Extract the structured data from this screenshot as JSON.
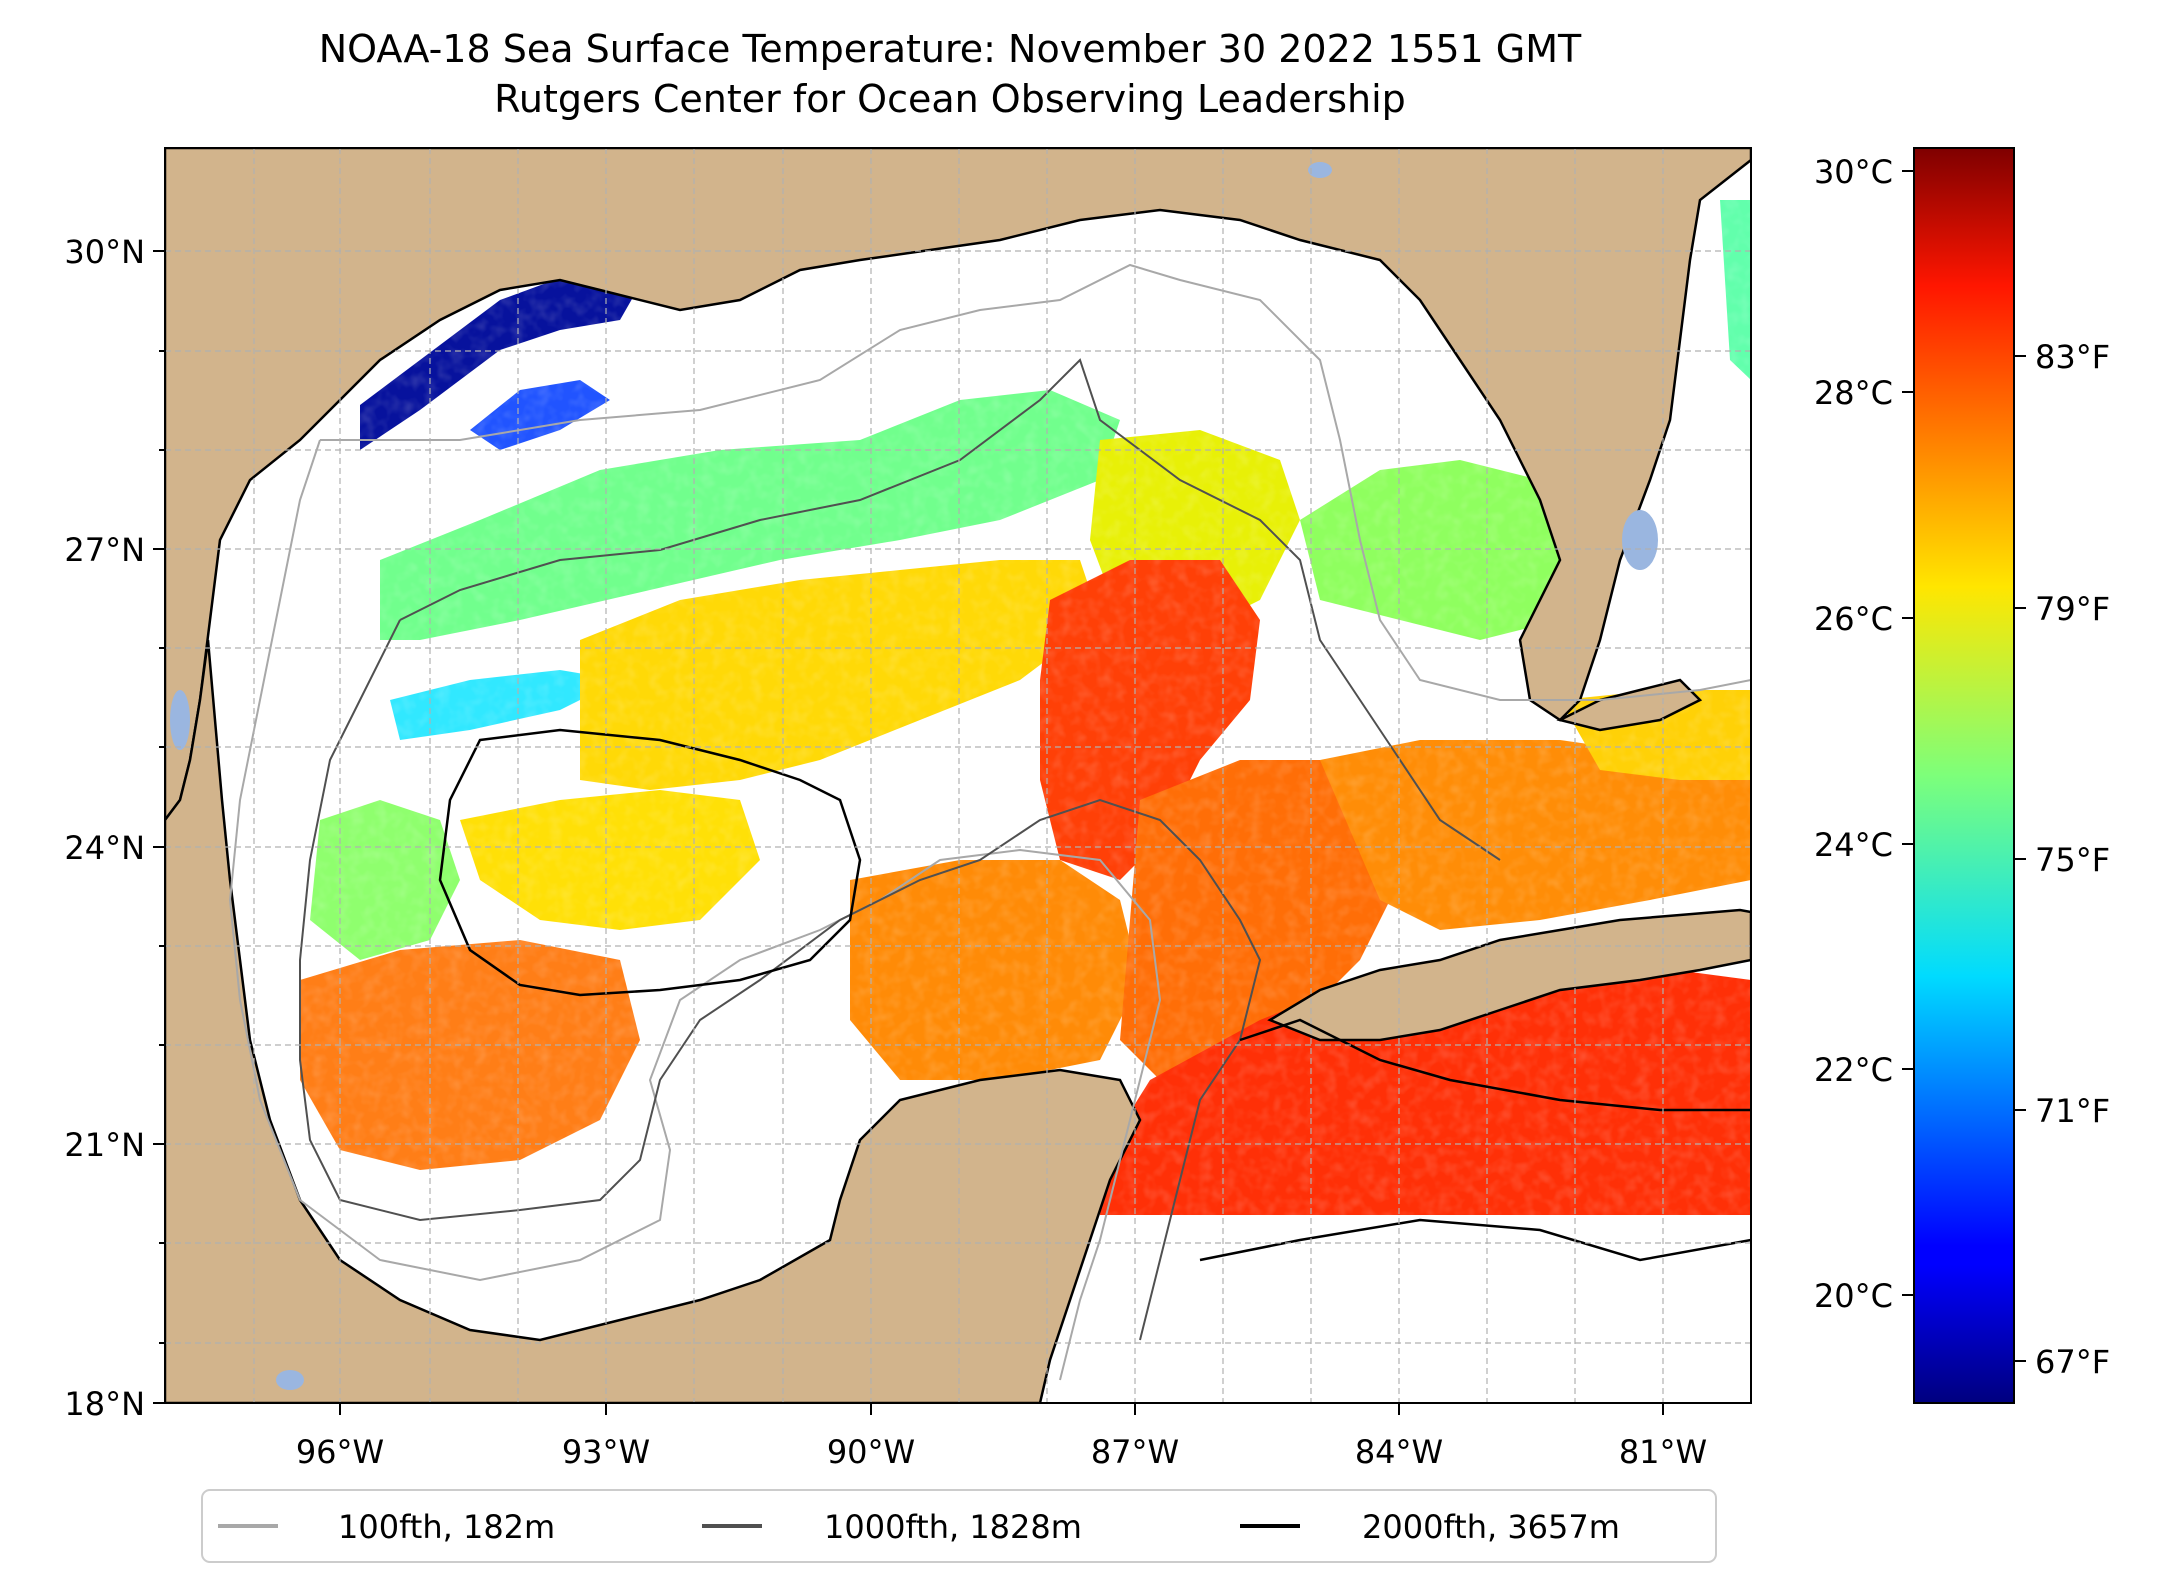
{
  "title": {
    "line1": "NOAA-18 Sea Surface Temperature: November 30 2022 1551 GMT",
    "line2": "Rutgers Center for Ocean Observing Leadership"
  },
  "map": {
    "lat_ticks": [
      "30°N",
      "27°N",
      "24°N",
      "21°N",
      "18°N"
    ],
    "lon_ticks": [
      "96°W",
      "93°W",
      "90°W",
      "87°W",
      "84°W",
      "81°W"
    ],
    "extent": {
      "lon_min": -98.3,
      "lon_max": -80.4,
      "lat_min": 18,
      "lat_max": 30.7
    },
    "colors": {
      "land": "#d2b48c",
      "missing": "#ffffff",
      "grid": "#b0b0b0",
      "lakes": "#9ab6e0"
    }
  },
  "colorbar": {
    "celsius_ticks": [
      "30°C",
      "28°C",
      "26°C",
      "24°C",
      "22°C",
      "20°C"
    ],
    "fahrenheit_ticks": [
      "83°F",
      "79°F",
      "75°F",
      "71°F",
      "67°F"
    ],
    "colormap": "jet"
  },
  "legend": [
    {
      "label": "100fth, 182m",
      "color": "#a8a8a8"
    },
    {
      "label": "1000fth, 1828m",
      "color": "#505050"
    },
    {
      "label": "2000fth, 3657m",
      "color": "#000000"
    }
  ]
}
